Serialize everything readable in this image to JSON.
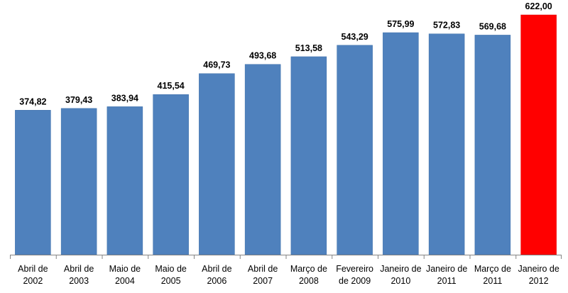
{
  "chart_data": {
    "type": "bar",
    "categories": [
      [
        "Abril de",
        "2002"
      ],
      [
        "Abril de",
        "2003"
      ],
      [
        "Maio de",
        "2004"
      ],
      [
        "Maio de",
        "2005"
      ],
      [
        "Abril de",
        "2006"
      ],
      [
        "Abril de",
        "2007"
      ],
      [
        "Março de",
        "2008"
      ],
      [
        "Fevereiro",
        "de 2009"
      ],
      [
        "Janeiro de",
        "2010"
      ],
      [
        "Janeiro de",
        "2011"
      ],
      [
        "Março de",
        "2011"
      ],
      [
        "Janeiro de",
        "2012"
      ]
    ],
    "values": [
      374.82,
      379.43,
      383.94,
      415.54,
      469.73,
      493.68,
      513.58,
      543.29,
      575.99,
      572.83,
      569.68,
      622.0
    ],
    "value_labels": [
      "374,82",
      "379,43",
      "383,94",
      "415,54",
      "469,73",
      "493,68",
      "513,58",
      "543,29",
      "575,99",
      "572,83",
      "569,68",
      "622,00"
    ],
    "colors": [
      "#4F81BD",
      "#4F81BD",
      "#4F81BD",
      "#4F81BD",
      "#4F81BD",
      "#4F81BD",
      "#4F81BD",
      "#4F81BD",
      "#4F81BD",
      "#4F81BD",
      "#4F81BD",
      "#FF0000"
    ],
    "title": "",
    "xlabel": "",
    "ylabel": "",
    "ylim": [
      0,
      622
    ],
    "grid": false,
    "legend": "none"
  }
}
